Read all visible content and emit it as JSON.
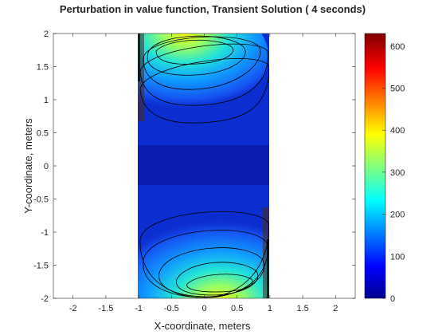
{
  "chart_data": {
    "type": "heatmap",
    "title": "Perturbation in value function, Transient Solution ( 4 seconds)",
    "xlabel": "X-coordinate, meters",
    "ylabel": "Y-coordinate, meters",
    "xlim": [
      -2.3,
      2.3
    ],
    "ylim": [
      -2,
      2
    ],
    "xticks": [
      "-2",
      "-1.5",
      "-1",
      "-0.5",
      "0",
      "0.5",
      "1",
      "1.5",
      "2"
    ],
    "yticks": [
      "2",
      "1.5",
      "1",
      "0.5",
      "0",
      "-0.5",
      "-1",
      "-1.5",
      "-2"
    ],
    "domain_x": [
      -1,
      1
    ],
    "domain_y": [
      -2,
      2
    ],
    "colormap": "jet",
    "clim": [
      0,
      630
    ],
    "colorbar_ticks": [
      "600",
      "500",
      "400",
      "300",
      "200",
      "100",
      "0"
    ],
    "peaks": [
      {
        "x": 0.0,
        "y": 1.75,
        "value": 380
      },
      {
        "x": 0.0,
        "y": -1.75,
        "value": 380
      }
    ],
    "contour_lines": "black",
    "grid": false
  }
}
